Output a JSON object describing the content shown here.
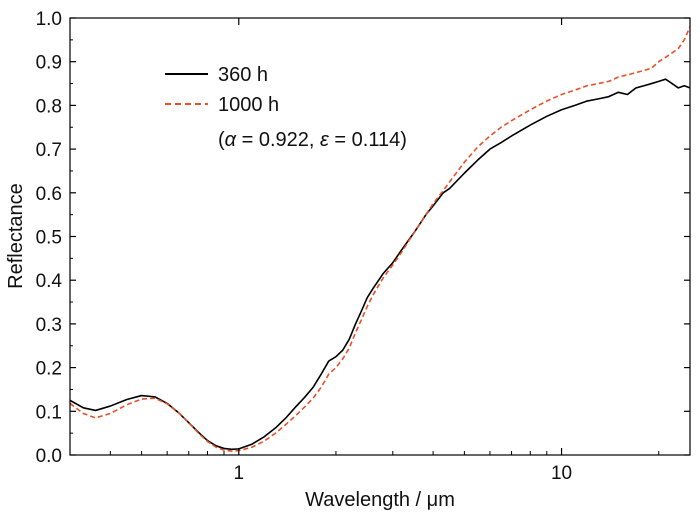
{
  "chart_data": {
    "type": "line",
    "xlabel": "Wavelength / μm",
    "ylabel": "Reflectance",
    "xscale": "log",
    "xlim": [
      0.3,
      25
    ],
    "ylim": [
      0.0,
      1.0
    ],
    "x_ticks": [
      {
        "value": 1,
        "label": "1"
      },
      {
        "value": 10,
        "label": "10"
      }
    ],
    "y_ticks": [
      {
        "value": 0.0,
        "label": "0.0"
      },
      {
        "value": 0.1,
        "label": "0.1"
      },
      {
        "value": 0.2,
        "label": "0.2"
      },
      {
        "value": 0.3,
        "label": "0.3"
      },
      {
        "value": 0.4,
        "label": "0.4"
      },
      {
        "value": 0.5,
        "label": "0.5"
      },
      {
        "value": 0.6,
        "label": "0.6"
      },
      {
        "value": 0.7,
        "label": "0.7"
      },
      {
        "value": 0.8,
        "label": "0.8"
      },
      {
        "value": 0.9,
        "label": "0.9"
      },
      {
        "value": 1.0,
        "label": "1.0"
      }
    ],
    "legend_position": "top-left",
    "annotation": {
      "prefix": "(",
      "alpha_symbol": "α",
      "alpha_eq": " = 0.922, ",
      "epsilon_symbol": "ε",
      "epsilon_eq": " = 0.114)"
    },
    "series": [
      {
        "name": "360 h",
        "color": "#000000",
        "dash": "solid",
        "x": [
          0.3,
          0.33,
          0.36,
          0.4,
          0.45,
          0.5,
          0.55,
          0.6,
          0.65,
          0.7,
          0.75,
          0.8,
          0.85,
          0.9,
          0.95,
          1.0,
          1.1,
          1.2,
          1.3,
          1.4,
          1.5,
          1.6,
          1.7,
          1.8,
          1.9,
          2.0,
          2.1,
          2.2,
          2.3,
          2.4,
          2.5,
          2.6,
          2.8,
          3.0,
          3.2,
          3.5,
          3.8,
          4.0,
          4.3,
          4.5,
          5.0,
          5.5,
          6.0,
          6.5,
          7.0,
          8.0,
          9.0,
          10.0,
          11.0,
          12.0,
          13.0,
          14.0,
          15.0,
          16.0,
          17.0,
          18.0,
          19.0,
          20.0,
          21.0,
          22.0,
          23.0,
          24.0,
          25.0
        ],
        "y": [
          0.125,
          0.108,
          0.102,
          0.112,
          0.127,
          0.136,
          0.133,
          0.118,
          0.097,
          0.074,
          0.052,
          0.033,
          0.021,
          0.015,
          0.013,
          0.014,
          0.025,
          0.042,
          0.062,
          0.085,
          0.11,
          0.132,
          0.155,
          0.185,
          0.215,
          0.225,
          0.24,
          0.265,
          0.3,
          0.33,
          0.36,
          0.38,
          0.415,
          0.44,
          0.47,
          0.51,
          0.55,
          0.57,
          0.6,
          0.61,
          0.645,
          0.675,
          0.7,
          0.715,
          0.73,
          0.755,
          0.775,
          0.79,
          0.8,
          0.81,
          0.815,
          0.82,
          0.83,
          0.825,
          0.84,
          0.845,
          0.85,
          0.855,
          0.86,
          0.85,
          0.84,
          0.845,
          0.84
        ]
      },
      {
        "name": "1000 h",
        "color": "#e8502a",
        "dash": "dashed",
        "x": [
          0.3,
          0.33,
          0.36,
          0.4,
          0.45,
          0.5,
          0.55,
          0.6,
          0.65,
          0.7,
          0.75,
          0.8,
          0.85,
          0.9,
          0.95,
          1.0,
          1.1,
          1.2,
          1.3,
          1.4,
          1.5,
          1.6,
          1.7,
          1.8,
          1.9,
          2.0,
          2.1,
          2.2,
          2.3,
          2.4,
          2.5,
          2.6,
          2.8,
          3.0,
          3.2,
          3.5,
          3.8,
          4.0,
          4.3,
          4.5,
          5.0,
          5.5,
          6.0,
          6.5,
          7.0,
          8.0,
          9.0,
          10.0,
          11.0,
          12.0,
          13.0,
          14.0,
          15.0,
          16.0,
          17.0,
          18.0,
          19.0,
          20.0,
          21.0,
          22.0,
          23.0,
          24.0,
          25.0
        ],
        "y": [
          0.118,
          0.095,
          0.085,
          0.095,
          0.115,
          0.128,
          0.13,
          0.117,
          0.097,
          0.074,
          0.05,
          0.031,
          0.018,
          0.011,
          0.009,
          0.01,
          0.018,
          0.032,
          0.05,
          0.07,
          0.09,
          0.11,
          0.13,
          0.155,
          0.185,
          0.2,
          0.22,
          0.245,
          0.28,
          0.31,
          0.34,
          0.365,
          0.405,
          0.435,
          0.465,
          0.51,
          0.55,
          0.575,
          0.605,
          0.625,
          0.67,
          0.705,
          0.73,
          0.75,
          0.765,
          0.79,
          0.81,
          0.825,
          0.835,
          0.845,
          0.85,
          0.855,
          0.865,
          0.87,
          0.875,
          0.88,
          0.885,
          0.9,
          0.91,
          0.92,
          0.93,
          0.95,
          0.98
        ]
      }
    ]
  }
}
